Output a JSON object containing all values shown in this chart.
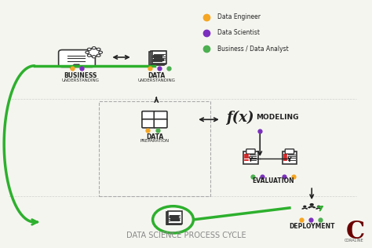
{
  "bg_color": "#f5f5f0",
  "title": "DATA SCIENCE PROCESS CYCLE",
  "title_fontsize": 7,
  "title_color": "#888888",
  "green": "#2db02d",
  "black": "#222222",
  "gray": "#888888",
  "orange": "#f5a623",
  "purple": "#7b2fbe",
  "light_green": "#4caf50",
  "dashed_color": "#aaaaaa",
  "legend_items": [
    {
      "label": "Data Engineer",
      "color": "#f5a623"
    },
    {
      "label": "Data Scientist",
      "color": "#7b2fbe"
    },
    {
      "label": "Business / Data Analyst",
      "color": "#4caf50"
    }
  ]
}
